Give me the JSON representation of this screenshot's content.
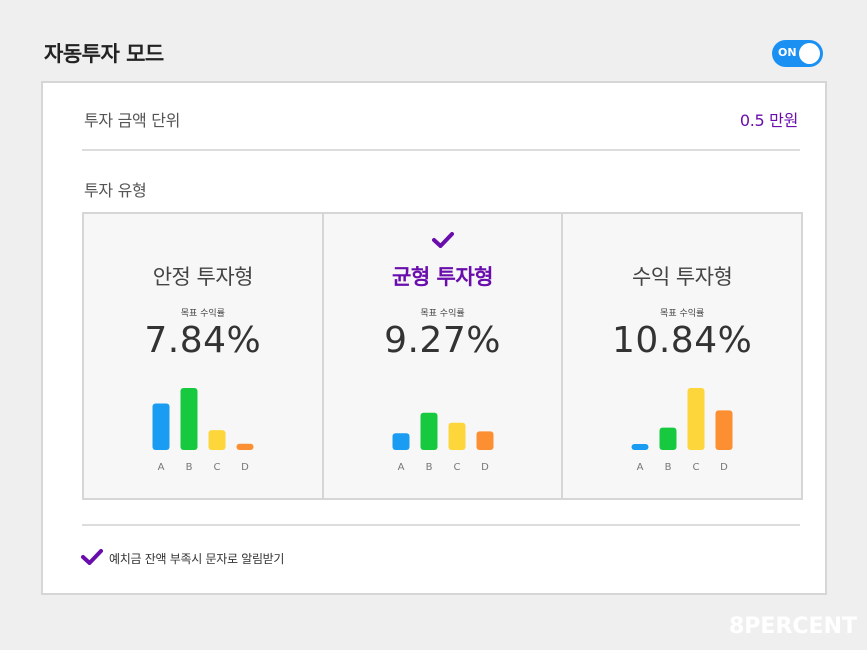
{
  "header": {
    "title": "자동투자 모드",
    "toggle_label": "ON"
  },
  "unit": {
    "label": "투자 금액 단위",
    "value": "0.5 만원"
  },
  "type_section": {
    "label": "투자 유형"
  },
  "colors": {
    "accent": "#6a0dad",
    "toggle": "#1a91f2",
    "A": "#1a9cf2",
    "B": "#17c93f",
    "C": "#fdd63c",
    "D": "#fd8f33"
  },
  "cards": [
    {
      "name": "안정 투자형",
      "caption": "목표 수익률",
      "rate": "7.84%",
      "selected": false,
      "chart_data": {
        "type": "bar",
        "categories": [
          "A",
          "B",
          "C",
          "D"
        ],
        "values": [
          0.75,
          1.0,
          0.32,
          0.1
        ]
      }
    },
    {
      "name": "균형 투자형",
      "caption": "목표 수익률",
      "rate": "9.27%",
      "selected": true,
      "chart_data": {
        "type": "bar",
        "categories": [
          "A",
          "B",
          "C",
          "D"
        ],
        "values": [
          0.27,
          0.6,
          0.44,
          0.3
        ]
      }
    },
    {
      "name": "수익 투자형",
      "caption": "목표 수익률",
      "rate": "10.84%",
      "selected": false,
      "chart_data": {
        "type": "bar",
        "categories": [
          "A",
          "B",
          "C",
          "D"
        ],
        "values": [
          0.08,
          0.36,
          1.0,
          0.64
        ]
      }
    }
  ],
  "footer": {
    "notify_label": "예치금 잔액 부족시 문자로 알림받기",
    "notify_checked": true
  },
  "watermark": "8PERCENT"
}
